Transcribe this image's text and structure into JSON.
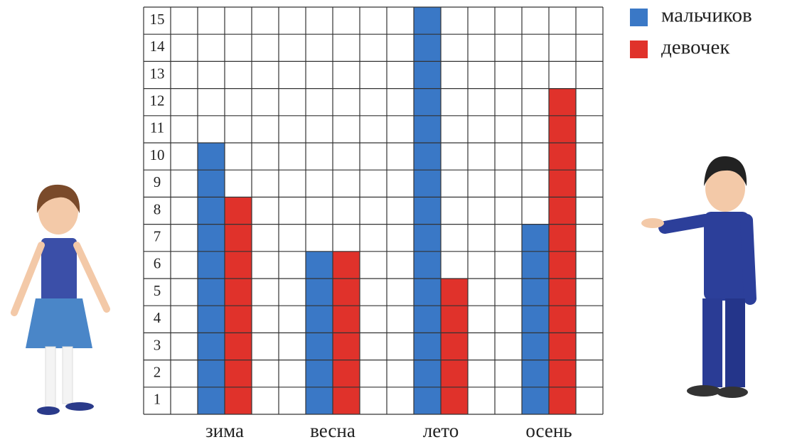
{
  "chart_data": {
    "type": "bar",
    "categories": [
      "зима",
      "весна",
      "лето",
      "осень"
    ],
    "series": [
      {
        "name": "мальчиков",
        "color": "#3a78c6",
        "values": [
          10,
          6,
          15,
          7
        ]
      },
      {
        "name": "девочек",
        "color": "#e0322b",
        "values": [
          8,
          6,
          5,
          12
        ]
      }
    ],
    "ylim": [
      0,
      15
    ],
    "yticks": [
      1,
      2,
      3,
      4,
      5,
      6,
      7,
      8,
      9,
      10,
      11,
      12,
      13,
      14,
      15
    ],
    "grid": true,
    "legend": "top-right"
  }
}
